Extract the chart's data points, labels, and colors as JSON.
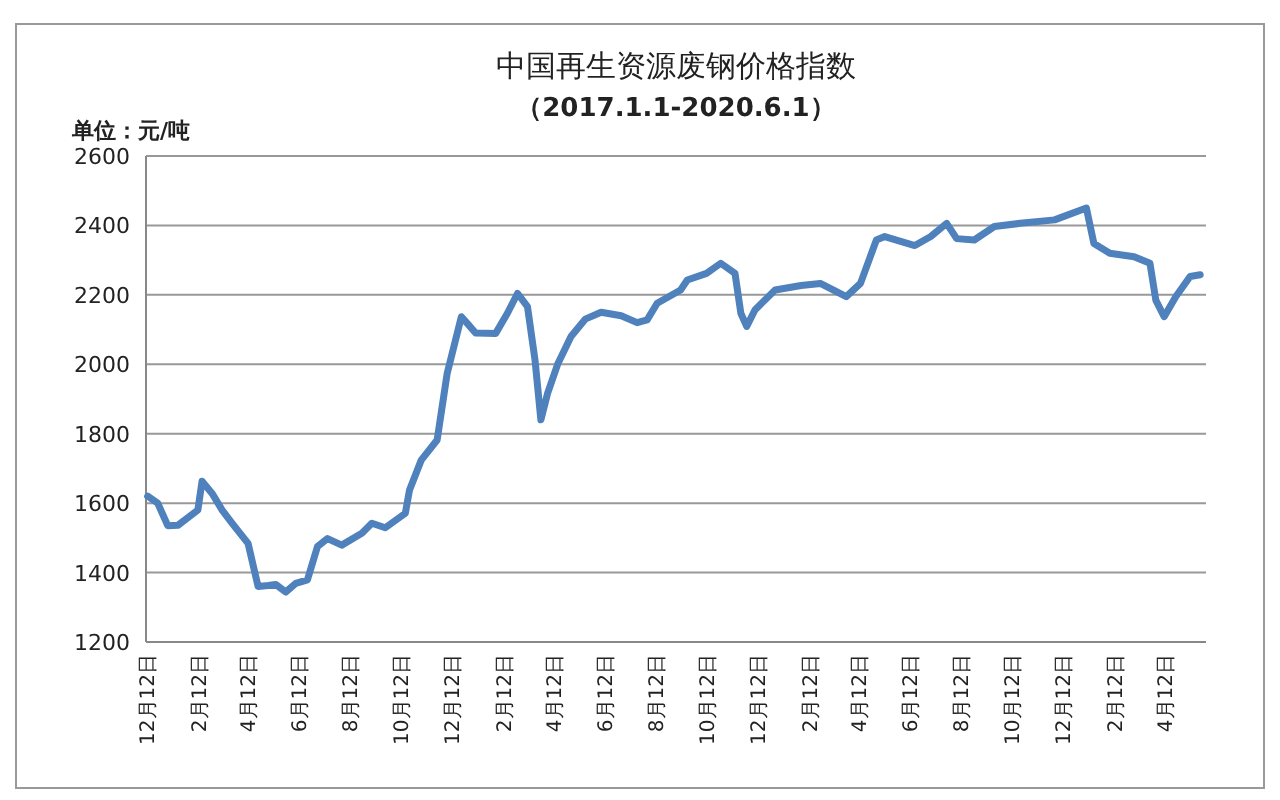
{
  "chart_data": {
    "type": "line",
    "title": "中国再生资源废钢价格指数",
    "subtitle": "（2017.1.1-2020.6.1）",
    "ylabel": "单位：元/吨",
    "x": [
      "2016-12-14",
      "2016-12-26",
      "2017-01-07",
      "2017-01-19",
      "2017-02-12",
      "2017-02-17",
      "2017-03-01",
      "2017-03-13",
      "2017-03-25",
      "2017-04-13",
      "2017-04-25",
      "2017-05-07",
      "2017-05-16",
      "2017-05-28",
      "2017-06-09",
      "2017-06-23",
      "2017-07-05",
      "2017-07-17",
      "2017-08-03",
      "2017-08-27",
      "2017-09-08",
      "2017-09-24",
      "2017-10-18",
      "2017-10-23",
      "2017-11-06",
      "2017-11-25",
      "2017-12-07",
      "2017-12-24",
      "2017-12-31",
      "2018-01-10",
      "2018-02-03",
      "2018-02-17",
      "2018-03-01",
      "2018-03-13",
      "2018-03-22",
      "2018-03-29",
      "2018-04-06",
      "2018-04-18",
      "2018-05-04",
      "2018-05-21",
      "2018-06-09",
      "2018-07-03",
      "2018-07-22",
      "2018-08-03",
      "2018-08-15",
      "2018-09-12",
      "2018-09-20",
      "2018-10-13",
      "2018-10-30",
      "2018-11-16",
      "2018-11-23",
      "2018-11-30",
      "2018-12-10",
      "2019-01-03",
      "2019-02-03",
      "2019-02-26",
      "2019-03-29",
      "2019-04-15",
      "2019-05-04",
      "2019-05-14",
      "2019-06-19",
      "2019-07-08",
      "2019-07-27",
      "2019-08-08",
      "2019-08-29",
      "2019-09-22",
      "2019-10-23",
      "2019-12-03",
      "2020-01-10",
      "2020-01-19",
      "2020-02-07",
      "2020-03-07",
      "2020-03-26",
      "2020-04-02",
      "2020-04-12",
      "2020-04-26",
      "2020-05-13",
      "2020-05-25"
    ],
    "series": [
      {
        "color": "#4f81bd",
        "values": [
          1620,
          1600,
          1535,
          1536,
          1580,
          1663,
          1628,
          1580,
          1542,
          1484,
          1360,
          1363,
          1366,
          1344,
          1369,
          1379,
          1475,
          1498,
          1479,
          1513,
          1542,
          1529,
          1571,
          1638,
          1724,
          1782,
          1974,
          2137,
          2118,
          2090,
          2089,
          2147,
          2204,
          2166,
          2012,
          1840,
          1916,
          2000,
          2080,
          2130,
          2150,
          2140,
          2120,
          2128,
          2176,
          2214,
          2243,
          2262,
          2291,
          2262,
          2147,
          2109,
          2157,
          2214,
          2227,
          2233,
          2195,
          2233,
          2358,
          2368,
          2342,
          2368,
          2406,
          2362,
          2358,
          2397,
          2406,
          2416,
          2450,
          2348,
          2320,
          2310,
          2291,
          2185,
          2137,
          2195,
          2253,
          2258
        ]
      }
    ],
    "xlim": [
      "2016-12-12",
      "2020-06-01"
    ],
    "xticks": [
      {
        "value": "2016-12-12",
        "label": "12月12日"
      },
      {
        "value": "2017-02-12",
        "label": "2月12日"
      },
      {
        "value": "2017-04-12",
        "label": "4月12日"
      },
      {
        "value": "2017-06-12",
        "label": "6月12日"
      },
      {
        "value": "2017-08-12",
        "label": "8月12日"
      },
      {
        "value": "2017-10-12",
        "label": "10月12日"
      },
      {
        "value": "2017-12-12",
        "label": "12月12日"
      },
      {
        "value": "2018-02-12",
        "label": "2月12日"
      },
      {
        "value": "2018-04-12",
        "label": "4月12日"
      },
      {
        "value": "2018-06-12",
        "label": "6月12日"
      },
      {
        "value": "2018-08-12",
        "label": "8月12日"
      },
      {
        "value": "2018-10-12",
        "label": "10月12日"
      },
      {
        "value": "2018-12-12",
        "label": "12月12日"
      },
      {
        "value": "2019-02-12",
        "label": "2月12日"
      },
      {
        "value": "2019-04-12",
        "label": "4月12日"
      },
      {
        "value": "2019-06-12",
        "label": "6月12日"
      },
      {
        "value": "2019-08-12",
        "label": "8月12日"
      },
      {
        "value": "2019-10-12",
        "label": "10月12日"
      },
      {
        "value": "2019-12-12",
        "label": "12月12日"
      },
      {
        "value": "2020-02-12",
        "label": "2月12日"
      },
      {
        "value": "2020-04-12",
        "label": "4月12日"
      }
    ],
    "ylim": [
      1200,
      2600
    ],
    "yticks": [
      1200,
      1400,
      1600,
      1800,
      2000,
      2200,
      2400,
      2600
    ],
    "grid": "y"
  }
}
